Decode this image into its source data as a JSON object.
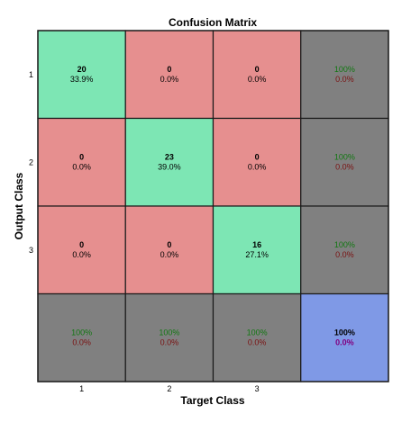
{
  "chart_data": {
    "type": "heatmap",
    "title": "Confusion Matrix",
    "xlabel": "Target Class",
    "ylabel": "Output Class",
    "x_tick_labels": [
      "1",
      "2",
      "3"
    ],
    "y_tick_labels": [
      "1",
      "2",
      "3"
    ],
    "matrix": [
      [
        20,
        0,
        0
      ],
      [
        0,
        23,
        0
      ],
      [
        0,
        0,
        16
      ]
    ],
    "cell_percent": [
      [
        "33.9%",
        "0.0%",
        "0.0%"
      ],
      [
        "0.0%",
        "39.0%",
        "0.0%"
      ],
      [
        "0.0%",
        "0.0%",
        "27.1%"
      ]
    ],
    "row_summary": [
      {
        "correct": "100%",
        "error": "0.0%"
      },
      {
        "correct": "100%",
        "error": "0.0%"
      },
      {
        "correct": "100%",
        "error": "0.0%"
      }
    ],
    "col_summary": [
      {
        "correct": "100%",
        "error": "0.0%"
      },
      {
        "correct": "100%",
        "error": "0.0%"
      },
      {
        "correct": "100%",
        "error": "0.0%"
      }
    ],
    "overall": {
      "correct": "100%",
      "error": "0.0%"
    },
    "colors": {
      "correct_cell": "#7de6b4",
      "error_cell": "#e68f8f",
      "summary_cell": "#808080",
      "overall_cell": "#7f99e6",
      "grid_line": "#1a1a1a",
      "correct_text": "#117711",
      "error_text": "#7a1010",
      "overall_error_text": "#800080"
    }
  }
}
